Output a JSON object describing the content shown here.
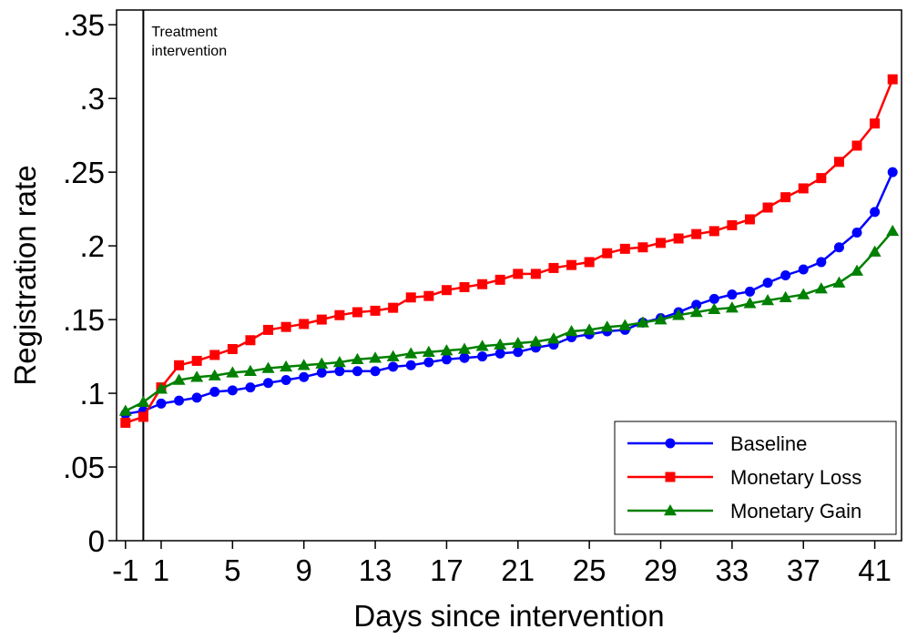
{
  "chart_data": {
    "type": "line",
    "xlabel": "Days since intervention",
    "ylabel": "Registration rate",
    "xlim": [
      -1.5,
      42.5
    ],
    "ylim": [
      0,
      0.36
    ],
    "x_ticks": [
      -1,
      1,
      5,
      9,
      13,
      17,
      21,
      25,
      29,
      33,
      37,
      41
    ],
    "x_tick_labels": [
      "-1",
      "1",
      "5",
      "9",
      "13",
      "17",
      "21",
      "25",
      "29",
      "33",
      "37",
      "41"
    ],
    "y_ticks": [
      0,
      0.05,
      0.1,
      0.15,
      0.2,
      0.25,
      0.3,
      0.35
    ],
    "y_tick_labels": [
      "0",
      ".05",
      ".1",
      ".15",
      ".2",
      ".25",
      ".3",
      ".35"
    ],
    "grid": false,
    "legend_position": "bottom-right",
    "annotation": {
      "x": 0,
      "lines": [
        "Treatment",
        "intervention"
      ]
    },
    "x": [
      -1,
      0,
      1,
      2,
      3,
      4,
      5,
      6,
      7,
      8,
      9,
      10,
      11,
      12,
      13,
      14,
      15,
      16,
      17,
      18,
      19,
      20,
      21,
      22,
      23,
      24,
      25,
      26,
      27,
      28,
      29,
      30,
      31,
      32,
      33,
      34,
      35,
      36,
      37,
      38,
      39,
      40,
      41,
      42
    ],
    "series": [
      {
        "name": "Baseline",
        "color": "#0000ff",
        "marker": "circle",
        "values": [
          0.086,
          0.088,
          0.093,
          0.095,
          0.097,
          0.101,
          0.102,
          0.104,
          0.107,
          0.109,
          0.111,
          0.114,
          0.115,
          0.115,
          0.115,
          0.118,
          0.119,
          0.121,
          0.123,
          0.124,
          0.125,
          0.127,
          0.128,
          0.131,
          0.133,
          0.138,
          0.14,
          0.142,
          0.143,
          0.148,
          0.151,
          0.155,
          0.16,
          0.164,
          0.167,
          0.169,
          0.175,
          0.18,
          0.184,
          0.189,
          0.199,
          0.209,
          0.223,
          0.25
        ]
      },
      {
        "name": "Monetary Loss",
        "color": "#ff0000",
        "marker": "square",
        "values": [
          0.08,
          0.084,
          0.104,
          0.119,
          0.122,
          0.126,
          0.13,
          0.136,
          0.143,
          0.145,
          0.147,
          0.15,
          0.153,
          0.155,
          0.156,
          0.158,
          0.165,
          0.166,
          0.17,
          0.172,
          0.174,
          0.177,
          0.181,
          0.181,
          0.185,
          0.187,
          0.189,
          0.195,
          0.198,
          0.199,
          0.202,
          0.205,
          0.208,
          0.21,
          0.214,
          0.218,
          0.226,
          0.233,
          0.239,
          0.246,
          0.257,
          0.268,
          0.283,
          0.313
        ]
      },
      {
        "name": "Monetary Gain",
        "color": "#008000",
        "marker": "triangle",
        "values": [
          0.088,
          0.094,
          0.103,
          0.109,
          0.111,
          0.112,
          0.114,
          0.115,
          0.117,
          0.118,
          0.119,
          0.12,
          0.121,
          0.123,
          0.124,
          0.125,
          0.127,
          0.128,
          0.129,
          0.13,
          0.132,
          0.133,
          0.134,
          0.135,
          0.137,
          0.142,
          0.143,
          0.145,
          0.146,
          0.148,
          0.15,
          0.153,
          0.155,
          0.157,
          0.158,
          0.161,
          0.163,
          0.165,
          0.167,
          0.171,
          0.175,
          0.183,
          0.196,
          0.21
        ]
      }
    ]
  }
}
